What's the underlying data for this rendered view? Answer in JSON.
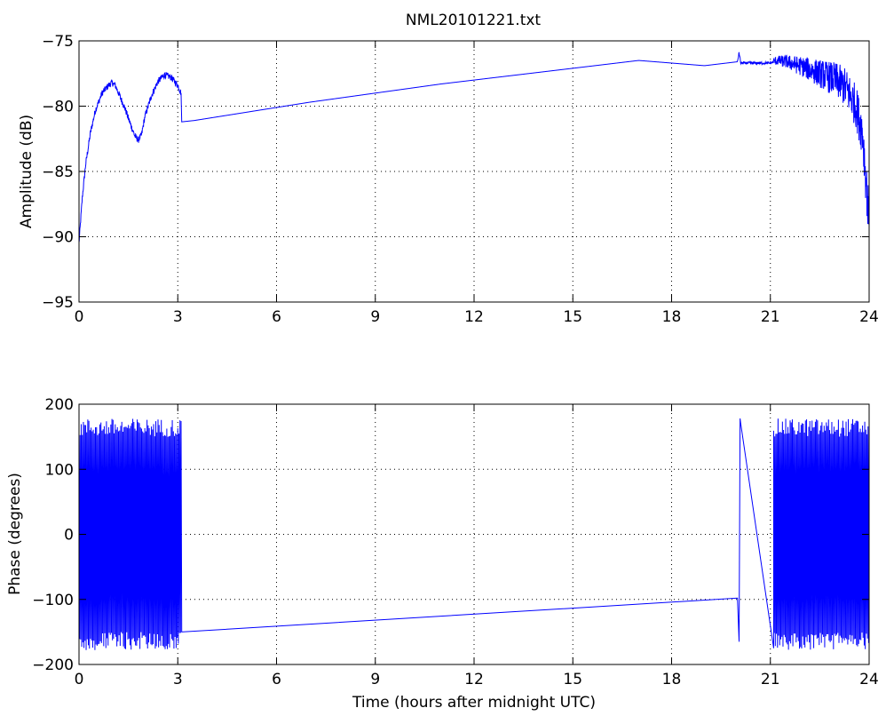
{
  "figure_title": "NML20101221.txt",
  "chart_data": [
    {
      "type": "line",
      "title": "NML20101221.txt",
      "xlabel": "",
      "ylabel": "Amplitude (dB)",
      "xlim": [
        0,
        24
      ],
      "ylim": [
        -95,
        -75
      ],
      "xticks": [
        "0",
        "3",
        "6",
        "9",
        "12",
        "15",
        "18",
        "21",
        "24"
      ],
      "yticks": [
        "-95",
        "-90",
        "-85",
        "-80",
        "-75"
      ],
      "grid": true,
      "color": "#0000ff",
      "series": [
        {
          "x": [
            0,
            0.1,
            0.2,
            0.35,
            0.5,
            0.7,
            0.9,
            1.0,
            1.1,
            1.25,
            1.4,
            1.55,
            1.7,
            1.8,
            1.9,
            2.0,
            2.2,
            2.4,
            2.6,
            2.8,
            3.0,
            3.1,
            3.12,
            3.5,
            5,
            7,
            9,
            11,
            13,
            15,
            17,
            19,
            20.0,
            20.05,
            20.1,
            20.2,
            20.5,
            21.0,
            21.2,
            21.5,
            22.0,
            22.5,
            23.0,
            23.3,
            23.6,
            23.8,
            24.0
          ],
          "y": [
            -90.5,
            -87,
            -84.5,
            -82,
            -80.3,
            -79,
            -78.4,
            -78.2,
            -78.4,
            -79.3,
            -80.2,
            -81.3,
            -82.3,
            -82.6,
            -82.2,
            -80.8,
            -79.2,
            -78.1,
            -77.6,
            -77.8,
            -78.4,
            -79.0,
            -81.2,
            -81.1,
            -80.5,
            -79.7,
            -79.0,
            -78.3,
            -77.7,
            -77.1,
            -76.5,
            -76.9,
            -76.6,
            -75.9,
            -76.7,
            -76.7,
            -76.7,
            -76.7,
            -76.5,
            -76.6,
            -77.0,
            -77.5,
            -78.0,
            -78.6,
            -80.0,
            -82.0,
            -89.0
          ]
        }
      ]
    },
    {
      "type": "line",
      "title": "",
      "xlabel": "Time (hours after midnight UTC)",
      "ylabel": "Phase (degrees)",
      "xlim": [
        0,
        24
      ],
      "ylim": [
        -200,
        200
      ],
      "xticks": [
        "0",
        "3",
        "6",
        "9",
        "12",
        "15",
        "18",
        "21",
        "24"
      ],
      "yticks": [
        "-200",
        "-100",
        "0",
        "100",
        "200"
      ],
      "grid": true,
      "color": "#0000ff",
      "series": [
        {
          "note_oscillation": "rapid wrap between -180 and 180 during 0-3.1 h and 21.1-24 h",
          "x": [
            0,
            3.1,
            3.12,
            6,
            9,
            12,
            15,
            18,
            20.0,
            20.05,
            20.1,
            21.1
          ],
          "y": [
            170,
            -150,
            -150,
            -145,
            -137,
            -128,
            -119,
            -110,
            -98,
            -165,
            178,
            -175
          ]
        }
      ]
    }
  ]
}
